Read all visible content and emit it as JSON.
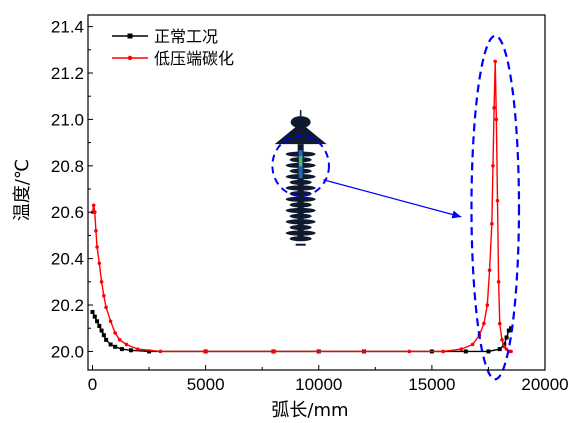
{
  "chart_data": {
    "type": "line",
    "title": "",
    "xlabel": "弧长/mm",
    "ylabel": "温度/℃",
    "xlim": [
      -200,
      20000
    ],
    "ylim": [
      19.92,
      21.45
    ],
    "xticks": [
      0,
      5000,
      10000,
      15000,
      20000
    ],
    "xtick_labels": [
      "0",
      "5000",
      "10000",
      "15000",
      "20000"
    ],
    "yticks": [
      20.0,
      20.2,
      20.4,
      20.6,
      20.8,
      21.0,
      21.2,
      21.4
    ],
    "ytick_labels": [
      "20.0",
      "20.2",
      "20.4",
      "20.6",
      "20.8",
      "21.0",
      "21.2",
      "21.4"
    ],
    "grid": false,
    "legend_position": "top-left",
    "series": [
      {
        "name": "正常工况",
        "color": "#000000",
        "marker": "square",
        "x": [
          0,
          100,
          200,
          300,
          400,
          500,
          600,
          800,
          1000,
          1300,
          1700,
          2500,
          5000,
          8000,
          10000,
          12000,
          15000,
          16500,
          17500,
          18000,
          18200,
          18300,
          18400,
          18500
        ],
        "y": [
          20.17,
          20.15,
          20.13,
          20.11,
          20.09,
          20.07,
          20.05,
          20.03,
          20.02,
          20.01,
          20.005,
          20.0,
          20.0,
          20.0,
          20.0,
          20.0,
          20.0,
          20.0,
          20.0,
          20.01,
          20.03,
          20.06,
          20.09,
          20.1
        ]
      },
      {
        "name": "低压端碳化",
        "color": "#ff0000",
        "marker": "dot",
        "x": [
          0,
          50,
          100,
          150,
          200,
          300,
          400,
          500,
          600,
          800,
          1000,
          1200,
          1500,
          2000,
          3000,
          5000,
          8000,
          10000,
          12000,
          14000,
          15500,
          16300,
          16800,
          17100,
          17300,
          17450,
          17550,
          17650,
          17700,
          17750,
          17800,
          17850,
          17900,
          17950,
          18000,
          18100,
          18200,
          18300,
          18400,
          18500
        ],
        "y": [
          20.6,
          20.63,
          20.6,
          20.52,
          20.45,
          20.38,
          20.3,
          20.24,
          20.19,
          20.13,
          20.08,
          20.05,
          20.03,
          20.01,
          20.0,
          20.0,
          20.0,
          20.0,
          20.0,
          20.0,
          20.0,
          20.01,
          20.03,
          20.07,
          20.12,
          20.2,
          20.35,
          20.55,
          20.8,
          21.05,
          21.25,
          21.0,
          20.65,
          20.3,
          20.12,
          20.05,
          20.02,
          20.01,
          20.0,
          20.0
        ]
      }
    ],
    "annotations": [
      {
        "type": "dashed-ellipse",
        "color": "#0000ff",
        "cx": 17800,
        "cy": 20.62,
        "rx": 1050,
        "ry": 0.74
      },
      {
        "type": "inset-image",
        "description_name": "insulator-diagram",
        "cx": 9200,
        "top": 21.04,
        "bottom": 20.46
      },
      {
        "type": "dashed-circle-on-inset",
        "color": "#0000ff",
        "cx": 9200,
        "cy": 20.8,
        "r": 1250,
        "ry": 0.13
      },
      {
        "type": "arrow",
        "color": "#0000ff",
        "from": [
          10200,
          20.74
        ],
        "to": [
          16300,
          20.58
        ]
      }
    ]
  }
}
